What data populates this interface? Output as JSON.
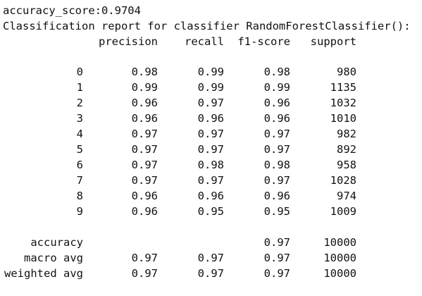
{
  "accuracy_line": "accuracy_score:0.9704",
  "report_title": "Classification report for classifier RandomForestClassifier():",
  "headers": {
    "precision": "precision",
    "recall": "recall",
    "f1": "f1-score",
    "support": "support"
  },
  "rows": [
    {
      "label": "0",
      "precision": "0.98",
      "recall": "0.99",
      "f1": "0.98",
      "support": "980"
    },
    {
      "label": "1",
      "precision": "0.99",
      "recall": "0.99",
      "f1": "0.99",
      "support": "1135"
    },
    {
      "label": "2",
      "precision": "0.96",
      "recall": "0.97",
      "f1": "0.96",
      "support": "1032"
    },
    {
      "label": "3",
      "precision": "0.96",
      "recall": "0.96",
      "f1": "0.96",
      "support": "1010"
    },
    {
      "label": "4",
      "precision": "0.97",
      "recall": "0.97",
      "f1": "0.97",
      "support": "982"
    },
    {
      "label": "5",
      "precision": "0.97",
      "recall": "0.97",
      "f1": "0.97",
      "support": "892"
    },
    {
      "label": "6",
      "precision": "0.97",
      "recall": "0.98",
      "f1": "0.98",
      "support": "958"
    },
    {
      "label": "7",
      "precision": "0.97",
      "recall": "0.97",
      "f1": "0.97",
      "support": "1028"
    },
    {
      "label": "8",
      "precision": "0.96",
      "recall": "0.96",
      "f1": "0.96",
      "support": "974"
    },
    {
      "label": "9",
      "precision": "0.96",
      "recall": "0.95",
      "f1": "0.95",
      "support": "1009"
    }
  ],
  "summary": [
    {
      "label": "accuracy",
      "precision": "",
      "recall": "",
      "f1": "0.97",
      "support": "10000"
    },
    {
      "label": "macro avg",
      "precision": "0.97",
      "recall": "0.97",
      "f1": "0.97",
      "support": "10000"
    },
    {
      "label": "weighted avg",
      "precision": "0.97",
      "recall": "0.97",
      "f1": "0.97",
      "support": "10000"
    }
  ]
}
